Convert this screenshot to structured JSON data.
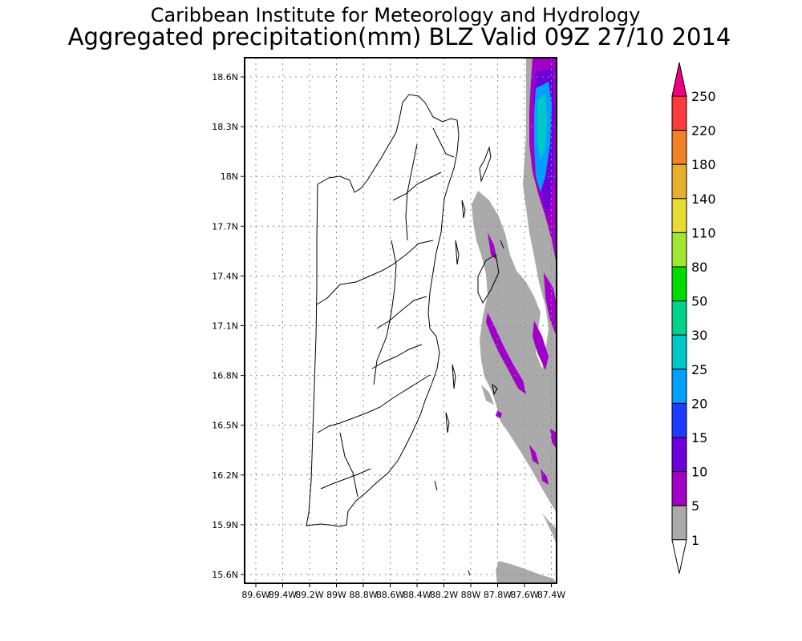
{
  "header": {
    "institute": "Caribbean Institute for Meteorology and Hydrology",
    "product": "Aggregated precipitation(mm) BLZ Valid 09Z 27/10 2014"
  },
  "map": {
    "lat_labels": [
      "18.6N",
      "18.3N",
      "18N",
      "17.7N",
      "17.4N",
      "17.1N",
      "16.8N",
      "16.5N",
      "16.2N",
      "15.9N",
      "15.6N"
    ],
    "lon_labels": [
      "89.6W",
      "89.4W",
      "89.2W",
      "89W",
      "88.8W",
      "88.6W",
      "88.4W",
      "88.2W",
      "88W",
      "87.8W",
      "87.6W",
      "87.4W"
    ]
  },
  "colorbar": {
    "labels": [
      "250",
      "220",
      "180",
      "140",
      "110",
      "80",
      "50",
      "30",
      "25",
      "20",
      "15",
      "10",
      "5",
      "1"
    ],
    "colors": [
      "#f00082",
      "#fa3c3c",
      "#f08228",
      "#e6af2d",
      "#e6dc32",
      "#a0e632",
      "#00dc00",
      "#00d28c",
      "#00c8c8",
      "#00a0ff",
      "#1e3cff",
      "#6e00dc",
      "#a000c8",
      "#aaaaaa",
      "#ffffff"
    ]
  }
}
